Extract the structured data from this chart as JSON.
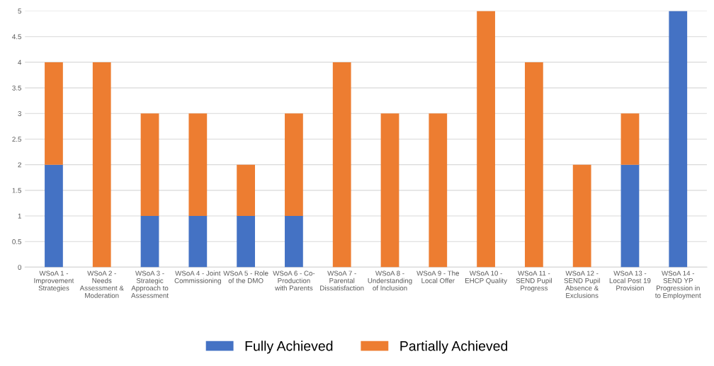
{
  "chart_data": {
    "type": "bar",
    "stacked": true,
    "categories": [
      "WSoA 1 -\nImprovement\nStrategies",
      "WSoA 2 -\nNeeds\nAssessment &\nModeration",
      "WSoA 3 -\nStrategic\nApproach to\nAssessment",
      "WSoA 4 - Joint\nCommissioning",
      "WSoA 5 - Role\nof the DMO",
      "WSoA 6 - Co-\nProduction\nwith Parents",
      "WSoA 7 -\nParental\nDissatisfaction",
      "WSoA 8 -\nUnderstanding\nof Inclusion",
      "WSoA 9 - The\nLocal Offer",
      "WSoA 10 -\nEHCP Quality",
      "WSoA 11 -\nSEND Pupil\nProgress",
      "WSoA 12 -\nSEND Pupil\nAbsence &\nExclusions",
      "WSoA 13 -\nLocal Post 19\nProvision",
      "WSoA 14 -\nSEND YP\nProgression in\nto Employment"
    ],
    "series": [
      {
        "name": "Fully Achieved",
        "color": "#4472c4",
        "values": [
          2,
          0,
          1,
          1,
          1,
          1,
          0,
          0,
          0,
          0,
          0,
          0,
          2,
          5
        ]
      },
      {
        "name": "Partially Achieved",
        "color": "#ed7d31",
        "values": [
          2,
          4,
          2,
          2,
          1,
          2,
          4,
          3,
          3,
          5,
          4,
          2,
          1,
          0
        ]
      }
    ],
    "ylim": [
      0,
      5
    ],
    "yticks": [
      0,
      0.5,
      1,
      1.5,
      2,
      2.5,
      3,
      3.5,
      4,
      4.5,
      5
    ],
    "grid": "y",
    "legend": "bottom"
  }
}
